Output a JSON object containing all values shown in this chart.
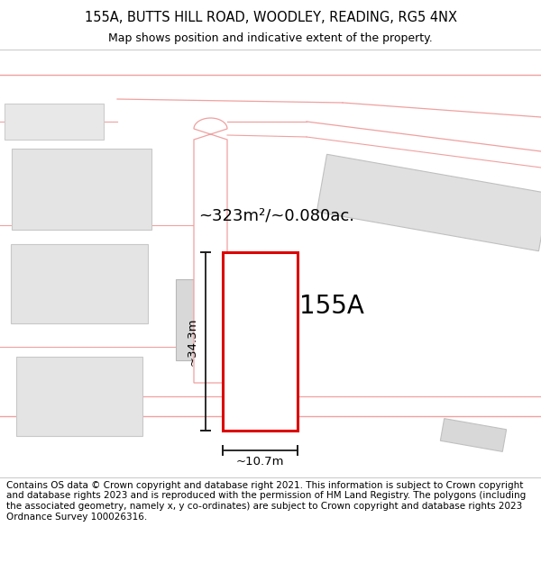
{
  "title_line1": "155A, BUTTS HILL ROAD, WOODLEY, READING, RG5 4NX",
  "title_line2": "Map shows position and indicative extent of the property.",
  "footer_text": "Contains OS data © Crown copyright and database right 2021. This information is subject to Crown copyright and database rights 2023 and is reproduced with the permission of\nHM Land Registry. The polygons (including the associated geometry, namely x, y co-ordinates) are subject to Crown copyright and database rights 2023 Ordnance Survey\n100026316.",
  "area_label": "~323m²/~0.080ac.",
  "height_label": "~34.3m",
  "width_label": "~10.7m",
  "property_label": "155A",
  "bg_color": "#ffffff",
  "road_color": "#f0a0a0",
  "building_fill": "#e2e2e2",
  "building_edge": "#c8c8c8",
  "property_stroke": "#dd0000",
  "property_fill": "#ffffff",
  "dim_color": "#1a1a1a",
  "title_fontsize": 10.5,
  "subtitle_fontsize": 9.0,
  "footer_fontsize": 7.5
}
